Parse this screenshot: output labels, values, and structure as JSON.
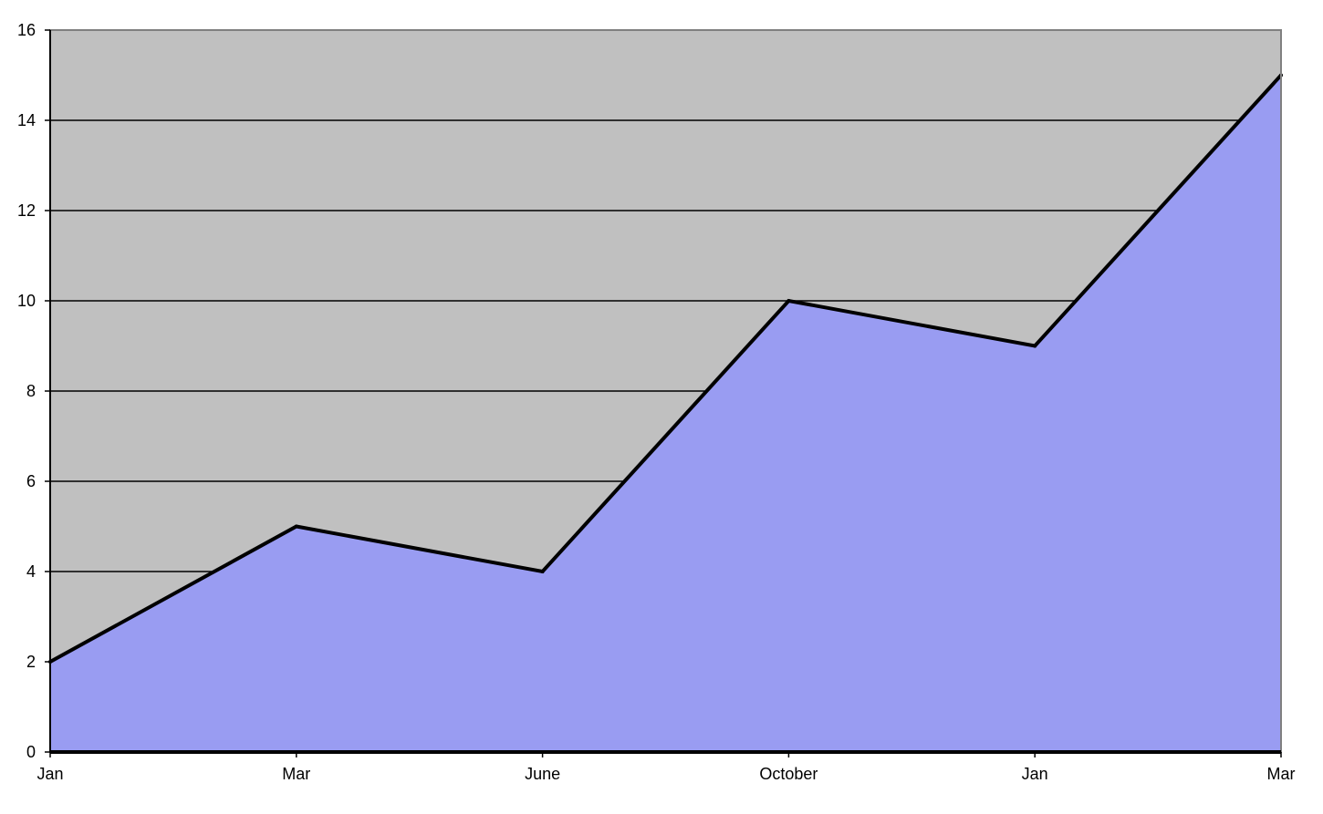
{
  "chart_data": {
    "type": "area",
    "title": "",
    "xlabel": "",
    "ylabel": "",
    "categories": [
      "Jan",
      "Mar",
      "June",
      "October",
      "Jan",
      "Mar"
    ],
    "series": [
      {
        "values": [
          2,
          5,
          4,
          10,
          9,
          15
        ]
      }
    ],
    "ylim": [
      0,
      16
    ],
    "yticks": [
      0,
      2,
      4,
      6,
      8,
      10,
      12,
      14,
      16
    ],
    "grid": true,
    "legend": "none",
    "colors": {
      "plot_background": "#c0c0c0",
      "area_fill": "#999cf2",
      "line": "#000000",
      "grid": "#000000"
    }
  }
}
